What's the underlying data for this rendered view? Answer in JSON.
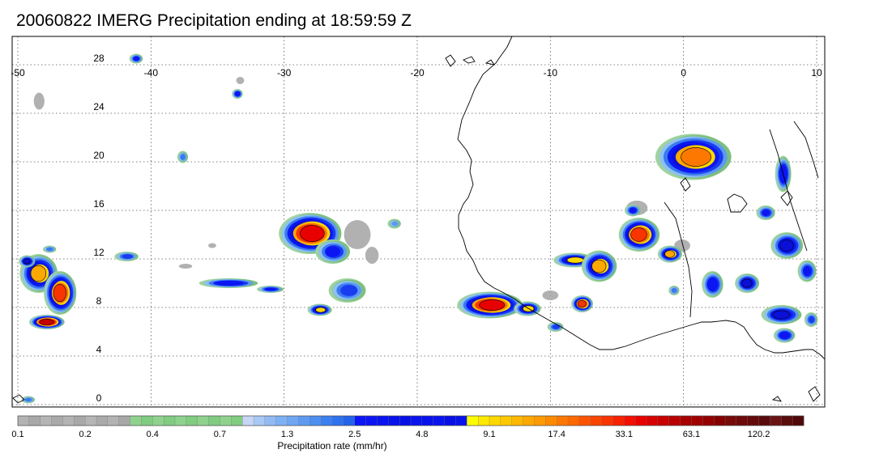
{
  "title": "20060822 IMERG Precipitation ending at 18:59:59 Z",
  "map": {
    "lon_range": [
      -50,
      10
    ],
    "lat_range": [
      -1,
      31
    ],
    "lon_ticks": [
      {
        "value": -50,
        "label": "-50"
      },
      {
        "value": -40,
        "label": "-40"
      },
      {
        "value": -30,
        "label": "-30"
      },
      {
        "value": -20,
        "label": "-20"
      },
      {
        "value": -10,
        "label": "-10"
      },
      {
        "value": 0,
        "label": "0"
      },
      {
        "value": 10,
        "label": "10"
      }
    ],
    "lat_ticks": [
      {
        "value": 0,
        "label": "0"
      },
      {
        "value": 4,
        "label": "4"
      },
      {
        "value": 8,
        "label": "8"
      },
      {
        "value": 12,
        "label": "12"
      },
      {
        "value": 16,
        "label": "16"
      },
      {
        "value": 20,
        "label": "20"
      },
      {
        "value": 24,
        "label": "24"
      },
      {
        "value": 28,
        "label": "28"
      }
    ],
    "gridlines": "dotted",
    "coastline_color": "#000000"
  },
  "precip_cells": [
    {
      "lon": -48.4,
      "lat": 10.8,
      "rlon": 1.4,
      "rlat": 1.6,
      "level": 11
    },
    {
      "lon": -46.8,
      "lat": 9.2,
      "rlon": 1.2,
      "rlat": 1.8,
      "level": 13
    },
    {
      "lon": -47.8,
      "lat": 6.8,
      "rlon": 1.3,
      "rlat": 0.6,
      "level": 15
    },
    {
      "lon": -49.3,
      "lat": 11.8,
      "rlon": 0.6,
      "rlat": 0.5,
      "level": 9
    },
    {
      "lon": -47.6,
      "lat": 12.8,
      "rlon": 0.5,
      "rlat": 0.3,
      "level": 5
    },
    {
      "lon": -41.8,
      "lat": 12.2,
      "rlon": 0.9,
      "rlat": 0.4,
      "level": 6
    },
    {
      "lon": -34.1,
      "lat": 10.0,
      "rlon": 2.2,
      "rlat": 0.4,
      "level": 8
    },
    {
      "lon": -31.0,
      "lat": 9.5,
      "rlon": 1.0,
      "rlat": 0.3,
      "level": 7
    },
    {
      "lon": -28.0,
      "lat": 14.1,
      "rlon": 2.3,
      "rlat": 1.7,
      "level": 14
    },
    {
      "lon": -26.3,
      "lat": 12.6,
      "rlon": 1.3,
      "rlat": 1.0,
      "level": 7
    },
    {
      "lon": -25.2,
      "lat": 9.4,
      "rlon": 1.4,
      "rlat": 1.0,
      "level": 6
    },
    {
      "lon": -27.3,
      "lat": 7.8,
      "rlon": 0.9,
      "rlat": 0.5,
      "level": 10
    },
    {
      "lon": -33.5,
      "lat": 25.6,
      "rlon": 0.4,
      "rlat": 0.4,
      "level": 8
    },
    {
      "lon": -41.1,
      "lat": 28.5,
      "rlon": 0.5,
      "rlat": 0.4,
      "level": 7
    },
    {
      "lon": -37.6,
      "lat": 20.4,
      "rlon": 0.4,
      "rlat": 0.5,
      "level": 5
    },
    {
      "lon": -14.5,
      "lat": 8.2,
      "rlon": 2.4,
      "rlat": 1.1,
      "level": 14
    },
    {
      "lon": -11.7,
      "lat": 7.9,
      "rlon": 1.0,
      "rlat": 0.6,
      "level": 10
    },
    {
      "lon": -8.2,
      "lat": 11.9,
      "rlon": 1.5,
      "rlat": 0.6,
      "level": 10
    },
    {
      "lon": -6.3,
      "lat": 11.4,
      "rlon": 1.3,
      "rlat": 1.3,
      "level": 11
    },
    {
      "lon": -7.6,
      "lat": 8.3,
      "rlon": 0.8,
      "rlat": 0.7,
      "level": 13
    },
    {
      "lon": -3.3,
      "lat": 14.0,
      "rlon": 1.5,
      "rlat": 1.4,
      "level": 13
    },
    {
      "lon": -1.0,
      "lat": 12.4,
      "rlon": 0.9,
      "rlat": 0.7,
      "level": 11
    },
    {
      "lon": 0.8,
      "lat": 20.4,
      "rlon": 2.8,
      "rlat": 1.9,
      "level": 12
    },
    {
      "lon": 2.2,
      "lat": 9.9,
      "rlon": 0.8,
      "rlat": 1.1,
      "level": 8
    },
    {
      "lon": 4.8,
      "lat": 10.0,
      "rlon": 0.9,
      "rlat": 0.8,
      "level": 9
    },
    {
      "lon": 6.2,
      "lat": 15.8,
      "rlon": 0.7,
      "rlat": 0.6,
      "level": 7
    },
    {
      "lon": 7.8,
      "lat": 13.1,
      "rlon": 1.2,
      "rlat": 1.1,
      "level": 9
    },
    {
      "lon": 7.4,
      "lat": 7.4,
      "rlon": 1.5,
      "rlat": 0.8,
      "level": 9
    },
    {
      "lon": 7.6,
      "lat": 5.7,
      "rlon": 0.8,
      "rlat": 0.6,
      "level": 8
    },
    {
      "lon": 7.5,
      "lat": 19.0,
      "rlon": 0.6,
      "rlat": 1.5,
      "level": 8
    },
    {
      "lon": 9.3,
      "lat": 11.0,
      "rlon": 0.7,
      "rlat": 0.9,
      "level": 7
    },
    {
      "lon": 9.6,
      "lat": 7.0,
      "rlon": 0.5,
      "rlat": 0.6,
      "level": 6
    },
    {
      "lon": -3.8,
      "lat": 16.0,
      "rlon": 0.6,
      "rlat": 0.5,
      "level": 7
    },
    {
      "lon": -9.6,
      "lat": 6.4,
      "rlon": 0.6,
      "rlat": 0.4,
      "level": 6
    },
    {
      "lon": -0.7,
      "lat": 9.4,
      "rlon": 0.4,
      "rlat": 0.4,
      "level": 5
    },
    {
      "lon": -21.7,
      "lat": 14.9,
      "rlon": 0.5,
      "rlat": 0.4,
      "level": 4
    },
    {
      "lon": -49.2,
      "lat": 0.4,
      "rlon": 0.5,
      "rlat": 0.3,
      "level": 5
    }
  ],
  "gray_patches": [
    {
      "lon": -24.5,
      "lat": 14.0,
      "rlon": 1.0,
      "rlat": 1.2
    },
    {
      "lon": -23.4,
      "lat": 12.3,
      "rlon": 0.5,
      "rlat": 0.7
    },
    {
      "lon": -0.1,
      "lat": 13.1,
      "rlon": 0.6,
      "rlat": 0.5
    },
    {
      "lon": -3.5,
      "lat": 16.2,
      "rlon": 0.8,
      "rlat": 0.6
    },
    {
      "lon": -10.0,
      "lat": 9.0,
      "rlon": 0.6,
      "rlat": 0.4
    },
    {
      "lon": -48.4,
      "lat": 25.0,
      "rlon": 0.4,
      "rlat": 0.7
    },
    {
      "lon": -33.3,
      "lat": 26.7,
      "rlon": 0.3,
      "rlat": 0.3
    },
    {
      "lon": -35.4,
      "lat": 13.1,
      "rlon": 0.3,
      "rlat": 0.2
    },
    {
      "lon": -37.4,
      "lat": 11.4,
      "rlon": 0.5,
      "rlat": 0.2
    }
  ],
  "colorbar": {
    "title": "Precipitation rate (mm/hr)",
    "colors": [
      "#b3b3b3",
      "#a8a8a8",
      "#b5b5b5",
      "#aaaaaa",
      "#b3b3b3",
      "#a8a8a8",
      "#b5b5b5",
      "#aaaaaa",
      "#b3b3b3",
      "#a8a8a8",
      "#8ed28e",
      "#80cc80",
      "#8ed28e",
      "#80cc80",
      "#8ed28e",
      "#80cc80",
      "#8ed28e",
      "#80cc80",
      "#8ed28e",
      "#80cc80",
      "#c6d6f4",
      "#a9c8f4",
      "#92bbf4",
      "#7db1f4",
      "#70a6f2",
      "#5e9af0",
      "#4c8ff0",
      "#3a80f0",
      "#2e72ee",
      "#2464ea",
      "#0c16f6",
      "#0c16f2",
      "#0a14ee",
      "#0812ea",
      "#0810e6",
      "#0a14ee",
      "#0812ea",
      "#0a14ee",
      "#0810e6",
      "#0812ea",
      "#fdfd00",
      "#fde800",
      "#fdd800",
      "#fdc800",
      "#fdb800",
      "#fda800",
      "#fd9a00",
      "#fd8a00",
      "#fd7800",
      "#fd6800",
      "#fd5400",
      "#fa4400",
      "#f83400",
      "#f62200",
      "#f21000",
      "#e80000",
      "#d80000",
      "#c80000",
      "#b80000",
      "#a80000",
      "#a00000",
      "#920000",
      "#840000",
      "#780a0a",
      "#6e0a0a",
      "#640a0a",
      "#5a0a0a",
      "#6a1414",
      "#5a0c0c",
      "#500808"
    ],
    "tick_labels": [
      "0.1",
      "0.2",
      "0.4",
      "0.7",
      "1.3",
      "2.5",
      "4.8",
      "9.1",
      "17.4",
      "33.1",
      "63.1",
      "120.2"
    ]
  }
}
